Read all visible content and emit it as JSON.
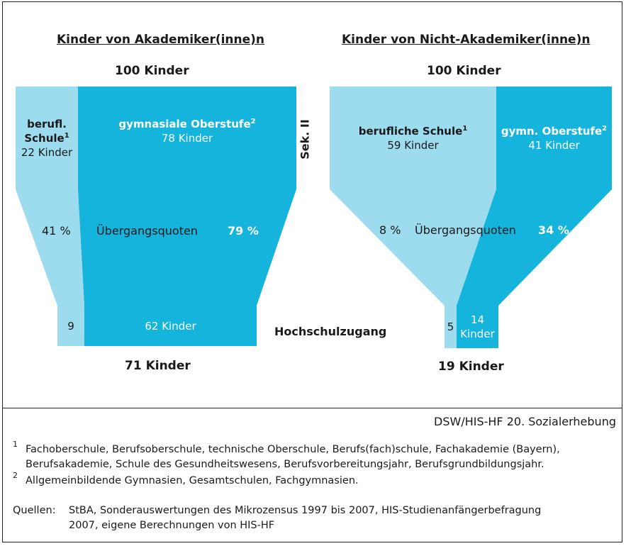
{
  "left": {
    "title": "Kinder von Akademiker(inne)n",
    "total_top": "100 Kinder",
    "vocational": {
      "label_line1": "berufl.",
      "label_line2": "Schule",
      "sup": "1",
      "count": "22 Kinder"
    },
    "academic": {
      "label": "gymnasiale Oberstufe",
      "sup": "2",
      "count": "78 Kinder"
    },
    "rate_vocational": "41 %",
    "rate_label": "Übergangsquoten",
    "rate_academic": "79 %",
    "result_vocational": "9",
    "result_academic": "62 Kinder",
    "total_bottom": "71 Kinder"
  },
  "right": {
    "title": "Kinder von Nicht-Akademiker(inne)n",
    "total_top": "100 Kinder",
    "vocational": {
      "label": "berufliche Schule",
      "sup": "1",
      "count": "59 Kinder"
    },
    "academic": {
      "label": "gymn. Oberstufe",
      "sup": "2",
      "count": "41 Kinder"
    },
    "rate_vocational": "8 %",
    "rate_label": "Übergangsquoten",
    "rate_academic": "34 %",
    "result_vocational": "5",
    "result_academic_line1": "14",
    "result_academic_line2": "Kinder",
    "total_bottom": "19 Kinder"
  },
  "side_label": "Sek. II",
  "hochschul_label": "Hochschulzugang",
  "source": "DSW/HIS-HF 20. Sozialerhebung",
  "footnotes": [
    {
      "num": "1",
      "line1": "Fachoberschule, Berufsoberschule, technische Oberschule, Berufs(fach)schule, Fachakademie (Bayern),",
      "line2": "Berufsakademie, Schule des Gesundheitswesens, Berufsvorbereitungsjahr, Berufsgrundbildungsjahr."
    },
    {
      "num": "2",
      "line1": "Allgemeinbildende Gymnasien, Gesamtschulen, Fachgymnasien."
    }
  ],
  "sources": {
    "label": "Quellen:",
    "line1": "StBA, Sonderauswertungen des Mikrozensus 1997 bis 2007, HIS-Studienanfängerbefragung",
    "line2": "2007, eigene Berechnungen von HIS-HF"
  },
  "colors": {
    "light": "#9cdcee",
    "dark": "#14b4dc"
  }
}
